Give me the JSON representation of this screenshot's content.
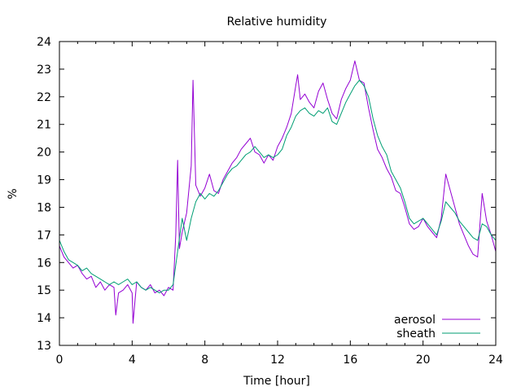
{
  "chart_data": {
    "type": "line",
    "title": "Relative humidity",
    "xlabel": "Time [hour]",
    "ylabel": "%",
    "xlim": [
      0,
      24
    ],
    "ylim": [
      13,
      24
    ],
    "xticks": [
      0,
      4,
      8,
      12,
      16,
      20,
      24
    ],
    "yticks": [
      13,
      14,
      15,
      16,
      17,
      18,
      19,
      20,
      21,
      22,
      23,
      24
    ],
    "grid": false,
    "legend_position": "bottom-right",
    "series": [
      {
        "name": "aerosol",
        "color": "#9400d3",
        "x": [
          0,
          0.25,
          0.5,
          0.75,
          1,
          1.25,
          1.5,
          1.75,
          2,
          2.25,
          2.5,
          2.75,
          3,
          3.1,
          3.25,
          3.5,
          3.75,
          4,
          4.05,
          4.25,
          4.5,
          4.75,
          5,
          5.25,
          5.5,
          5.75,
          6,
          6.25,
          6.4,
          6.5,
          6.6,
          6.75,
          7,
          7.25,
          7.35,
          7.5,
          7.75,
          8,
          8.25,
          8.5,
          8.75,
          9,
          9.25,
          9.5,
          9.75,
          10,
          10.25,
          10.5,
          10.75,
          11,
          11.25,
          11.5,
          11.75,
          12,
          12.25,
          12.5,
          12.75,
          13,
          13.1,
          13.25,
          13.5,
          13.75,
          14,
          14.25,
          14.5,
          14.75,
          15,
          15.25,
          15.5,
          15.75,
          16,
          16.25,
          16.5,
          16.75,
          17,
          17.25,
          17.5,
          17.75,
          18,
          18.25,
          18.5,
          18.75,
          19,
          19.25,
          19.5,
          19.75,
          20,
          20.25,
          20.5,
          20.75,
          21,
          21.25,
          21.5,
          21.75,
          22,
          22.25,
          22.5,
          22.75,
          23,
          23.25,
          23.5,
          23.75,
          24
        ],
        "y": [
          16.6,
          16.2,
          16.0,
          15.8,
          15.9,
          15.6,
          15.4,
          15.5,
          15.1,
          15.3,
          15.0,
          15.2,
          15.1,
          14.1,
          14.9,
          15.0,
          15.2,
          14.9,
          13.8,
          15.3,
          15.1,
          15.0,
          15.2,
          14.9,
          15.0,
          14.8,
          15.1,
          15.0,
          17.0,
          19.7,
          16.5,
          17.1,
          17.8,
          19.5,
          22.6,
          18.8,
          18.4,
          18.7,
          19.2,
          18.6,
          18.5,
          19.0,
          19.3,
          19.6,
          19.8,
          20.1,
          20.3,
          20.5,
          20.0,
          19.9,
          19.6,
          19.9,
          19.7,
          20.2,
          20.5,
          20.9,
          21.4,
          22.4,
          22.8,
          21.9,
          22.1,
          21.8,
          21.6,
          22.2,
          22.5,
          21.9,
          21.4,
          21.2,
          21.9,
          22.3,
          22.6,
          23.3,
          22.6,
          22.5,
          21.6,
          20.8,
          20.1,
          19.8,
          19.4,
          19.1,
          18.6,
          18.5,
          18.0,
          17.4,
          17.2,
          17.3,
          17.6,
          17.3,
          17.1,
          16.9,
          17.6,
          19.2,
          18.6,
          18.0,
          17.4,
          17.0,
          16.6,
          16.3,
          16.2,
          18.5,
          17.5,
          17.0,
          16.4
        ]
      },
      {
        "name": "sheath",
        "color": "#009e73",
        "x": [
          0,
          0.25,
          0.5,
          0.75,
          1,
          1.25,
          1.5,
          1.75,
          2,
          2.25,
          2.5,
          2.75,
          3,
          3.25,
          3.5,
          3.75,
          4,
          4.25,
          4.5,
          4.75,
          5,
          5.25,
          5.5,
          5.75,
          6,
          6.25,
          6.5,
          6.75,
          7,
          7.25,
          7.5,
          7.75,
          8,
          8.25,
          8.5,
          8.75,
          9,
          9.25,
          9.5,
          9.75,
          10,
          10.25,
          10.5,
          10.75,
          11,
          11.25,
          11.5,
          11.75,
          12,
          12.25,
          12.5,
          12.75,
          13,
          13.25,
          13.5,
          13.75,
          14,
          14.25,
          14.5,
          14.75,
          15,
          15.25,
          15.5,
          15.75,
          16,
          16.25,
          16.5,
          16.75,
          17,
          17.25,
          17.5,
          17.75,
          18,
          18.25,
          18.5,
          18.75,
          19,
          19.25,
          19.5,
          19.75,
          20,
          20.25,
          20.5,
          20.75,
          21,
          21.25,
          21.5,
          21.75,
          22,
          22.25,
          22.5,
          22.75,
          23,
          23.25,
          23.5,
          23.75,
          24
        ],
        "y": [
          16.8,
          16.4,
          16.1,
          16.0,
          15.9,
          15.7,
          15.8,
          15.6,
          15.5,
          15.4,
          15.3,
          15.2,
          15.3,
          15.2,
          15.3,
          15.4,
          15.2,
          15.3,
          15.1,
          15.0,
          15.1,
          15.0,
          14.9,
          15.0,
          15.0,
          15.2,
          16.4,
          17.6,
          16.8,
          17.6,
          18.2,
          18.5,
          18.3,
          18.5,
          18.4,
          18.6,
          18.9,
          19.2,
          19.4,
          19.5,
          19.7,
          19.9,
          20.0,
          20.2,
          20.0,
          19.8,
          19.9,
          19.8,
          19.9,
          20.1,
          20.6,
          20.9,
          21.3,
          21.5,
          21.6,
          21.4,
          21.3,
          21.5,
          21.4,
          21.6,
          21.1,
          21.0,
          21.4,
          21.8,
          22.1,
          22.4,
          22.6,
          22.4,
          22.0,
          21.2,
          20.6,
          20.2,
          19.9,
          19.3,
          19.0,
          18.7,
          18.2,
          17.6,
          17.4,
          17.5,
          17.6,
          17.4,
          17.2,
          17.0,
          17.5,
          18.2,
          18.0,
          17.8,
          17.5,
          17.3,
          17.1,
          16.9,
          16.8,
          17.4,
          17.3,
          17.0,
          16.8
        ]
      }
    ]
  }
}
